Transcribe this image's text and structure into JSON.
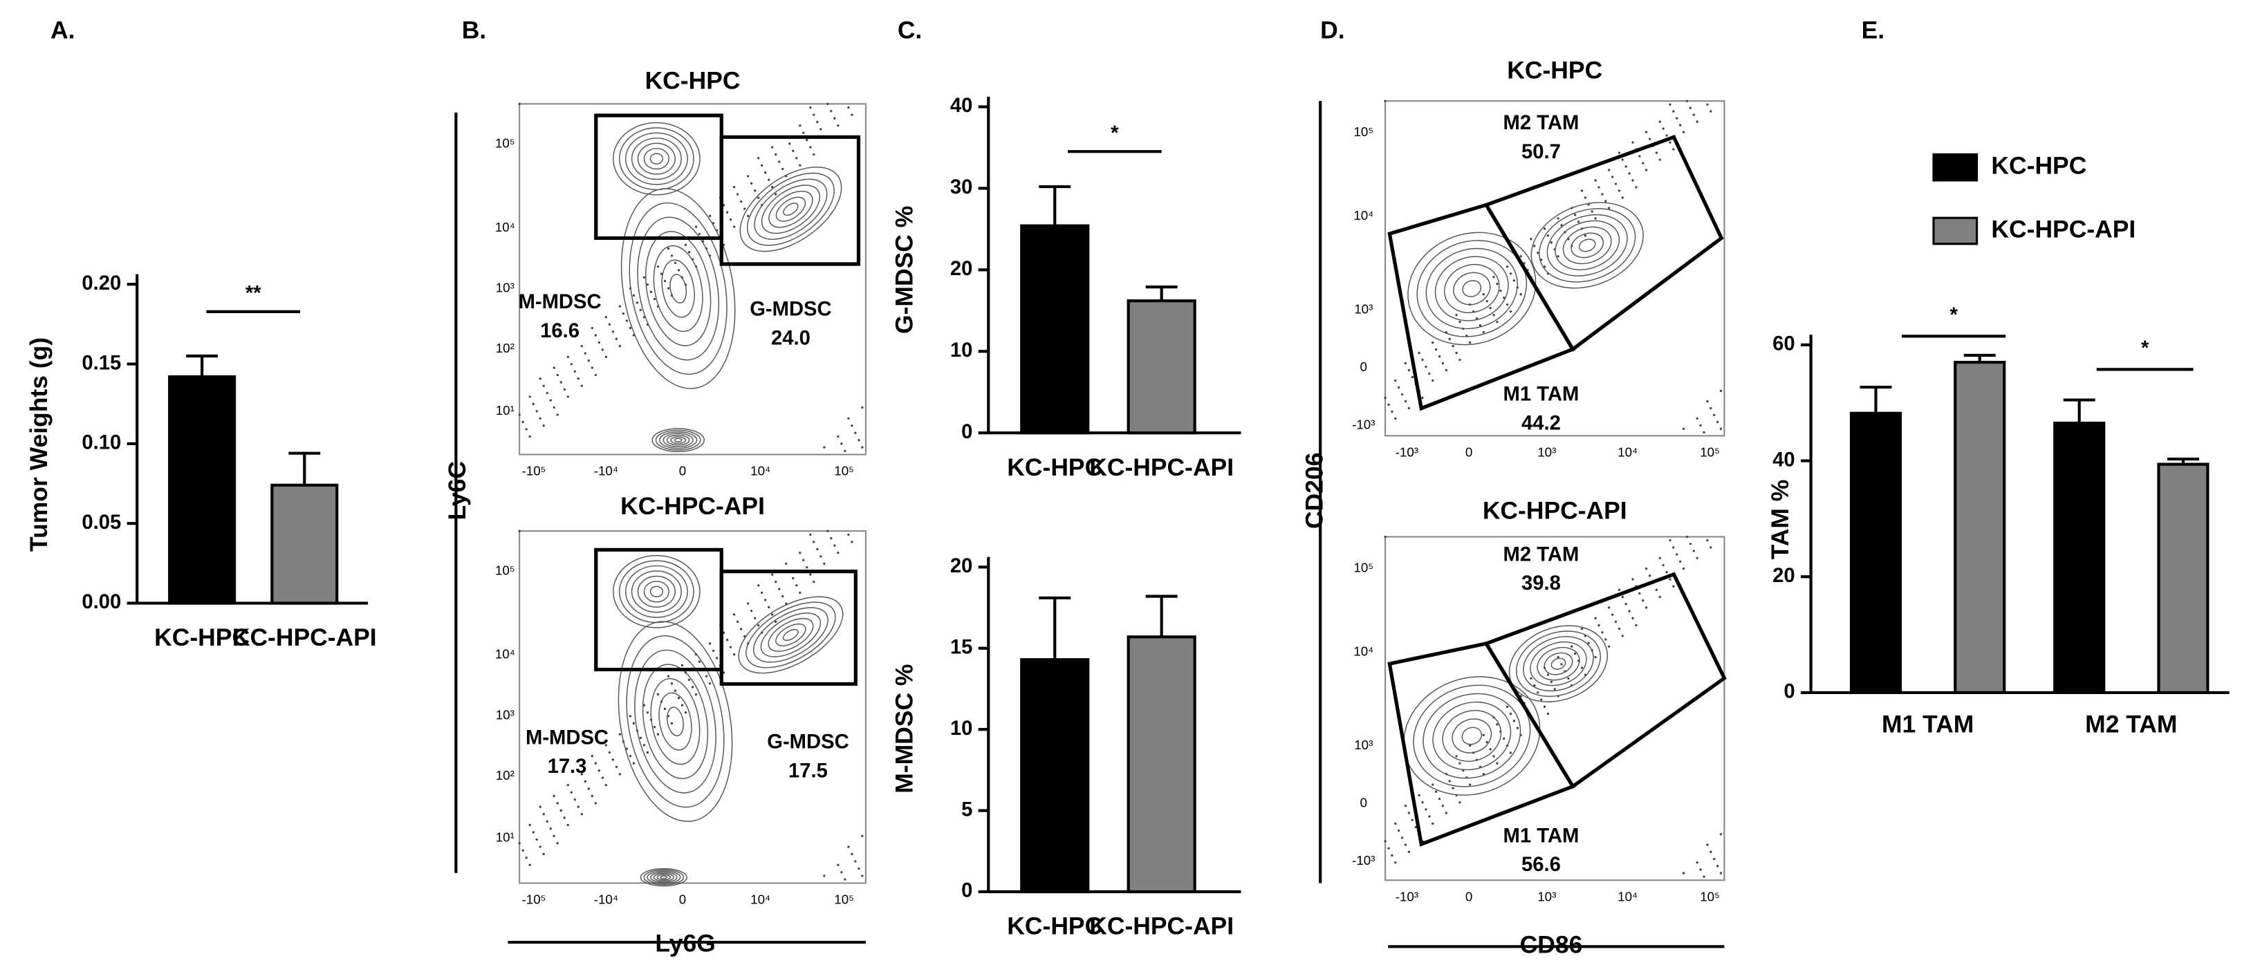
{
  "chart_data": [
    {
      "type": "bar",
      "panel": "A.",
      "ylabel": "Tumor Weights (g)",
      "categories": [
        "KC-HPC",
        "KC-HPC-API"
      ],
      "values": [
        0.142,
        0.074
      ],
      "errors": [
        0.013,
        0.02
      ],
      "colors": [
        "#000000",
        "#808080"
      ],
      "ylim": [
        0,
        0.2
      ],
      "yticks": [
        {
          "value": 0,
          "label": "0.00"
        },
        {
          "value": 0.05,
          "label": "0.05"
        },
        {
          "value": 0.1,
          "label": "0.10"
        },
        {
          "value": 0.15,
          "label": "0.15"
        },
        {
          "value": 0.2,
          "label": "0.20"
        }
      ],
      "significance": "**"
    },
    {
      "type": "flow",
      "panel": "B.",
      "xlabel": "Ly6G",
      "ylabel": "Ly6C",
      "xticks": [
        "-10⁵",
        "-10⁴",
        "0",
        "10⁴",
        "10⁵"
      ],
      "yticks": [
        "10⁵",
        "10⁴",
        "10³",
        "10²",
        "10¹"
      ],
      "plots": [
        {
          "title": "KC-HPC",
          "gates": [
            "M-MDSC",
            "G-MDSC"
          ],
          "values": [
            16.6,
            24.0
          ],
          "value_labels": [
            "16.6",
            "24.0"
          ]
        },
        {
          "title": "KC-HPC-API",
          "gates": [
            "M-MDSC",
            "G-MDSC"
          ],
          "values": [
            17.3,
            17.5
          ],
          "value_labels": [
            "17.3",
            "17.5"
          ]
        }
      ]
    },
    {
      "type": "bar",
      "panel": "C.",
      "ylabel": "G-MDSC %",
      "categories": [
        "KC-HPC",
        "KC-HPC-API"
      ],
      "values": [
        25.4,
        16.2
      ],
      "errors": [
        4.8,
        1.7
      ],
      "colors": [
        "#000000",
        "#808080"
      ],
      "ylim": [
        0,
        40
      ],
      "yticks": [
        0,
        10,
        20,
        30,
        40
      ],
      "significance": "*"
    },
    {
      "type": "bar",
      "ylabel": "M-MDSC %",
      "categories": [
        "KC-HPC",
        "KC-HPC-API"
      ],
      "values": [
        14.3,
        15.7
      ],
      "errors": [
        3.8,
        2.5
      ],
      "colors": [
        "#000000",
        "#808080"
      ],
      "ylim": [
        0,
        20
      ],
      "yticks": [
        0,
        5,
        10,
        15,
        20
      ]
    },
    {
      "type": "flow",
      "panel": "D.",
      "xlabel": "CD86",
      "ylabel": "CD206",
      "xticks": [
        "-10³",
        "0",
        "10³",
        "10⁴",
        "10⁵"
      ],
      "yticks": [
        "10⁵",
        "10⁴",
        "10³",
        "0",
        "-10³"
      ],
      "plots": [
        {
          "title": "KC-HPC",
          "gates": [
            "M2 TAM",
            "M1 TAM"
          ],
          "values": [
            50.7,
            44.2
          ],
          "value_labels": [
            "50.7",
            "44.2"
          ]
        },
        {
          "title": "KC-HPC-API",
          "gates": [
            "M2 TAM",
            "M1 TAM"
          ],
          "values": [
            39.8,
            56.6
          ],
          "value_labels": [
            "39.8",
            "56.6"
          ]
        }
      ]
    },
    {
      "type": "grouped-bar",
      "panel": "E.",
      "ylabel": "TAM %",
      "categories": [
        "M1 TAM",
        "M2 TAM"
      ],
      "series": [
        {
          "name": "KC-HPC",
          "color": "#000000",
          "values": [
            48.2,
            46.5
          ],
          "errors": [
            4.5,
            4.0
          ]
        },
        {
          "name": "KC-HPC-API",
          "color": "#808080",
          "values": [
            57.0,
            39.4
          ],
          "errors": [
            1.2,
            0.9
          ]
        }
      ],
      "ylim": [
        0,
        60
      ],
      "yticks": [
        0,
        20,
        40,
        60
      ],
      "significance": [
        "*",
        "*"
      ]
    }
  ]
}
